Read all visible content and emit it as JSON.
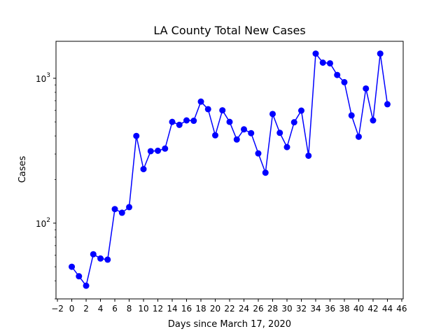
{
  "chart_data": {
    "type": "line",
    "title": "LA County Total New Cases",
    "xlabel": "Days since March 17, 2020",
    "ylabel": "Cases",
    "xlim": [
      -2.2,
      46.2
    ],
    "ylim": [
      30,
      1800
    ],
    "yscale": "log",
    "grid": false,
    "legend": "none",
    "x_ticks": [
      -2,
      0,
      2,
      4,
      6,
      8,
      10,
      12,
      14,
      16,
      18,
      20,
      22,
      24,
      26,
      28,
      30,
      32,
      34,
      36,
      38,
      40,
      42,
      44,
      46
    ],
    "y_major_ticks": [
      {
        "value": 100,
        "base": "10",
        "exp": "2"
      },
      {
        "value": 1000,
        "base": "10",
        "exp": "3"
      }
    ],
    "y_minor_ticks": [
      30,
      40,
      50,
      60,
      70,
      80,
      90,
      200,
      300,
      400,
      500,
      600,
      700,
      800,
      900
    ],
    "series": [
      {
        "color": "#0000ff",
        "marker": "circle",
        "x": [
          0,
          1,
          2,
          3,
          4,
          5,
          6,
          7,
          8,
          9,
          10,
          11,
          12,
          13,
          14,
          15,
          16,
          17,
          18,
          19,
          20,
          21,
          22,
          23,
          24,
          25,
          26,
          27,
          28,
          29,
          30,
          31,
          32,
          33,
          34,
          35,
          36,
          37,
          38,
          39,
          40,
          41,
          42,
          43,
          44
        ],
        "values": [
          50,
          43,
          37,
          61,
          57,
          56,
          125,
          118,
          129,
          400,
          236,
          314,
          316,
          327,
          500,
          477,
          512,
          509,
          690,
          612,
          404,
          601,
          500,
          378,
          444,
          418,
          303,
          223,
          567,
          420,
          335,
          497,
          598,
          292,
          1480,
          1282,
          1268,
          1054,
          940,
          554,
          395,
          850,
          512,
          1480,
          662
        ]
      }
    ]
  }
}
